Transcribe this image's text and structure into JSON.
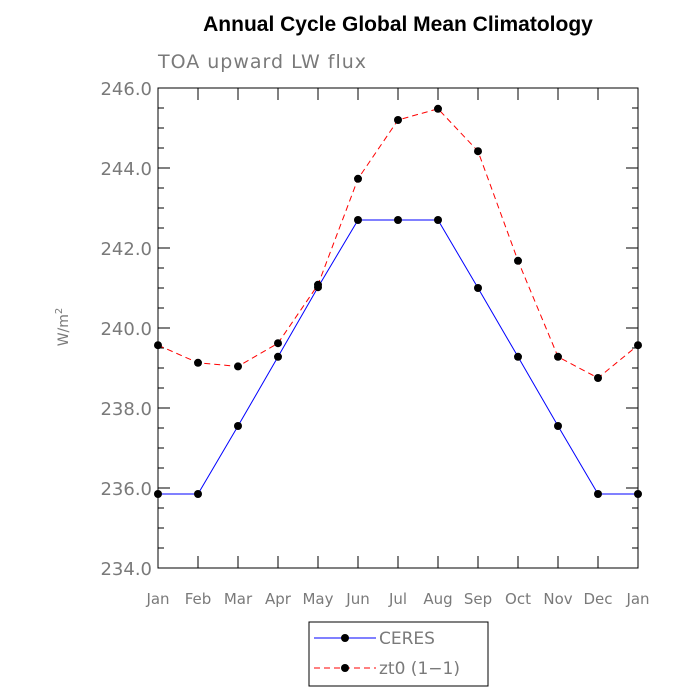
{
  "chart_data": {
    "type": "line",
    "title": "Annual Cycle Global Mean Climatology",
    "subtitle": "TOA upward LW flux",
    "ylabel": "W/m",
    "ylabel_sup": "2",
    "xlabel": "",
    "ylim": [
      234.0,
      246.0
    ],
    "yticks": [
      "234.0",
      "236.0",
      "238.0",
      "240.0",
      "242.0",
      "244.0",
      "246.0"
    ],
    "categories": [
      "Jan",
      "Feb",
      "Mar",
      "Apr",
      "May",
      "Jun",
      "Jul",
      "Aug",
      "Sep",
      "Oct",
      "Nov",
      "Dec",
      "Jan"
    ],
    "grid": false,
    "legend_position": "bottom-center",
    "series": [
      {
        "name": "CERES",
        "color": "#0000ff",
        "style": "solid",
        "values": [
          235.85,
          235.85,
          237.55,
          239.28,
          241.02,
          242.7,
          242.7,
          242.7,
          241.0,
          239.28,
          237.55,
          235.85,
          235.85
        ]
      },
      {
        "name": "zt0 (1−1)",
        "color": "#ff0000",
        "style": "dashed",
        "values": [
          239.57,
          239.13,
          239.04,
          239.62,
          241.08,
          243.73,
          245.2,
          245.48,
          244.42,
          241.68,
          239.28,
          238.75,
          239.57
        ]
      }
    ]
  }
}
